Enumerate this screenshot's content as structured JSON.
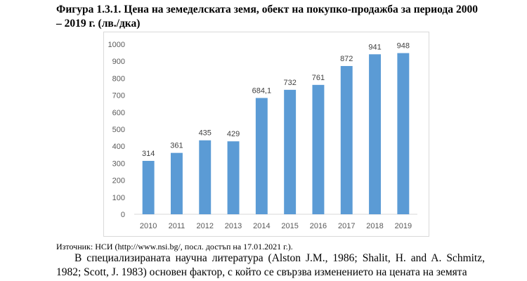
{
  "figure": {
    "caption": "Фигура 1.3.1. Цена на земеделската земя, обект на покупко-продажба за периода 2000 – 2019 г. (лв./дка)"
  },
  "source_note": "Източник: НСИ (http://www.nsi.bg/, посл. достъп на 17.01.2021 г.).",
  "paragraph": "В специализираната научна литература (Alston J.M., 1986; Shalit, H. and A. Schmitz, 1982; Scott, J. 1983) основен фактор, с който се свързва изменението на цената на земята",
  "chart_data": {
    "type": "bar",
    "categories": [
      "2010",
      "2011",
      "2012",
      "2013",
      "2014",
      "2015",
      "2016",
      "2017",
      "2018",
      "2019"
    ],
    "values": [
      314,
      361,
      435,
      429,
      684.1,
      732,
      761,
      872,
      941,
      948
    ],
    "value_labels": [
      "314",
      "361",
      "435",
      "429",
      "684,1",
      "732",
      "761",
      "872",
      "941",
      "948"
    ],
    "yticks": [
      "0",
      "100",
      "200",
      "300",
      "400",
      "500",
      "600",
      "700",
      "800",
      "900",
      "1000"
    ],
    "ylim": [
      0,
      1000
    ],
    "grid": false,
    "title": "",
    "xlabel": "",
    "ylabel": "",
    "bar_color": "#5b9bd5"
  }
}
